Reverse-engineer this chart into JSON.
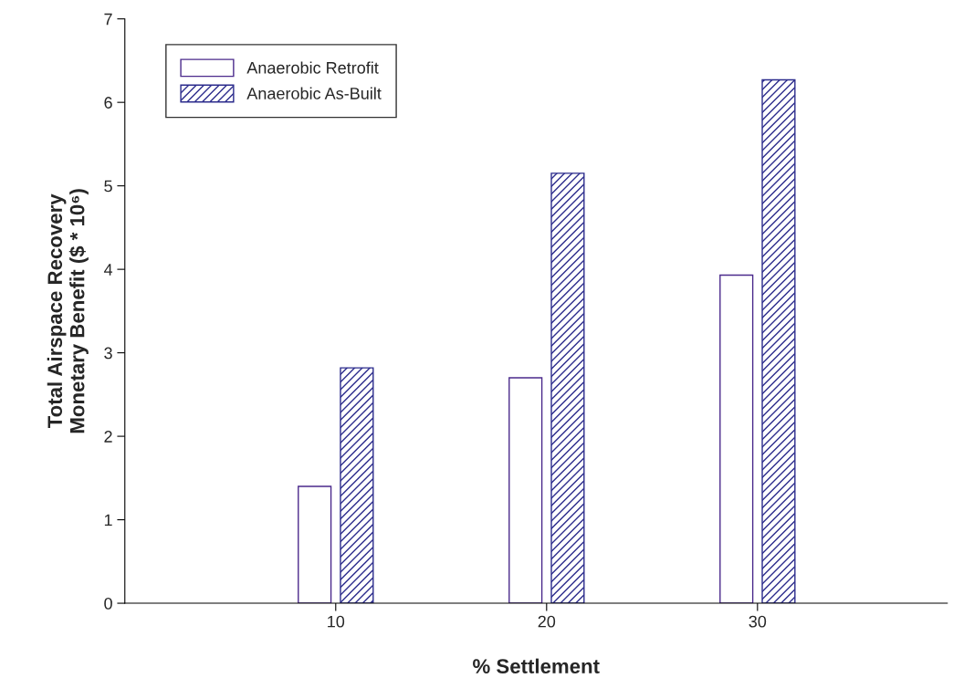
{
  "chart_data": {
    "type": "bar",
    "xlabel": "% Settlement",
    "ylabel": "Total Airspace Recovery\nMonetary Benefit ($ * 10⁶)",
    "x": [
      10,
      20,
      30
    ],
    "series": [
      {
        "name": "Anaerobic Retrofit",
        "color": "#4b2a8c",
        "values": [
          1.4,
          2.7,
          3.93
        ]
      },
      {
        "name": "Anaerobic As-Built",
        "color": "#2b2b8c",
        "values": [
          2.82,
          5.15,
          6.27
        ]
      }
    ],
    "xlim": [
      0,
      39
    ],
    "xticks": [
      10,
      20,
      30
    ],
    "ylim": [
      0,
      7
    ],
    "yticks": [
      0,
      1,
      2,
      3,
      4,
      5,
      6,
      7
    ],
    "grid": false,
    "legend": "top left"
  }
}
